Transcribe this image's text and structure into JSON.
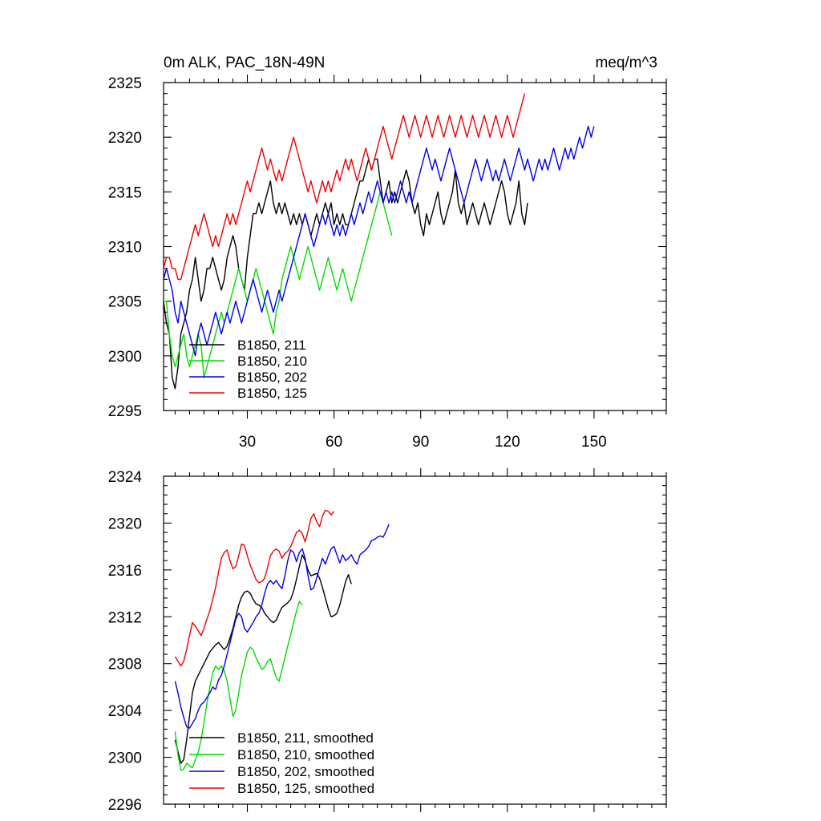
{
  "chart_data": [
    {
      "type": "line",
      "title_left": "0m ALK, PAC_18N-49N",
      "title_right": "meq/m^3",
      "xlabel": "",
      "ylabel": "",
      "xlim": [
        1,
        175
      ],
      "ylim": [
        2295,
        2325
      ],
      "xticks": [
        30,
        60,
        90,
        120,
        150
      ],
      "yticks": [
        2295,
        2300,
        2305,
        2310,
        2315,
        2320,
        2325
      ],
      "legend_position": "bottom-left",
      "series": [
        {
          "name": "B1850, 211",
          "color": "#000000",
          "x0": 1,
          "values": [
            2305,
            2303,
            2302,
            2298,
            2297,
            2299,
            2302,
            2303,
            2304,
            2306,
            2307,
            2309,
            2307,
            2305,
            2306,
            2308,
            2308,
            2309,
            2308,
            2307,
            2306,
            2307,
            2309,
            2310,
            2311,
            2310,
            2308,
            2307,
            2306,
            2309,
            2311,
            2313,
            2313,
            2314,
            2313,
            2314,
            2315,
            2316,
            2314,
            2313,
            2314,
            2313,
            2314,
            2313,
            2312,
            2313,
            2312,
            2313,
            2312,
            2313,
            2312,
            2311,
            2312,
            2313,
            2312,
            2313,
            2314,
            2313,
            2314,
            2312,
            2313,
            2312,
            2313,
            2312,
            2312,
            2313,
            2314,
            2315,
            2316,
            2316,
            2317,
            2318,
            2317,
            2318,
            2318,
            2316,
            2314,
            2315,
            2316,
            2314,
            2315,
            2314,
            2315,
            2316,
            2317,
            2316,
            2314,
            2313,
            2314,
            2312,
            2311,
            2313,
            2312,
            2313,
            2314,
            2315,
            2313,
            2312,
            2313,
            2314,
            2315,
            2317,
            2314,
            2313,
            2314,
            2312,
            2313,
            2314,
            2313,
            2312,
            2313,
            2314,
            2313,
            2312,
            2313,
            2314,
            2315,
            2316,
            2315,
            2313,
            2312,
            2313,
            2314,
            2316,
            2313,
            2312,
            2314
          ]
        },
        {
          "name": "B1850, 210",
          "color": "#00dd00",
          "x0": 1,
          "values": [
            2305,
            2305,
            2302,
            2300,
            2299,
            2300,
            2301,
            2302,
            2300,
            2299,
            2300,
            2301,
            2302,
            2301,
            2298,
            2299,
            2300,
            2301,
            2302,
            2303,
            2304,
            2303,
            2304,
            2305,
            2306,
            2307,
            2308,
            2307,
            2306,
            2305,
            2306,
            2307,
            2308,
            2307,
            2306,
            2305,
            2304,
            2303,
            2302,
            2304,
            2305,
            2307,
            2308,
            2309,
            2310,
            2309,
            2308,
            2307,
            2308,
            2309,
            2310,
            2309,
            2308,
            2307,
            2306,
            2307,
            2308,
            2309,
            2308,
            2307,
            2306,
            2307,
            2308,
            2307,
            2306,
            2305,
            2306,
            2307,
            2308,
            2309,
            2310,
            2311,
            2312,
            2313,
            2314,
            2315,
            2314,
            2313,
            2312,
            2311
          ]
        },
        {
          "name": "B1850, 202",
          "color": "#0000ee",
          "x0": 1,
          "values": [
            2307,
            2308,
            2307,
            2306,
            2304,
            2303,
            2305,
            2304,
            2303,
            2302,
            2301,
            2300,
            2302,
            2303,
            2302,
            2301,
            2302,
            2303,
            2304,
            2303,
            2302,
            2303,
            2304,
            2303,
            2304,
            2305,
            2304,
            2303,
            2304,
            2305,
            2306,
            2307,
            2306,
            2305,
            2304,
            2305,
            2306,
            2305,
            2304,
            2305,
            2306,
            2305,
            2306,
            2307,
            2308,
            2309,
            2310,
            2311,
            2312,
            2313,
            2312,
            2311,
            2310,
            2311,
            2312,
            2313,
            2312,
            2313,
            2312,
            2311,
            2312,
            2311,
            2312,
            2311,
            2312,
            2313,
            2312,
            2313,
            2314,
            2313,
            2314,
            2315,
            2314,
            2315,
            2316,
            2315,
            2314,
            2315,
            2314,
            2315,
            2314,
            2315,
            2316,
            2315,
            2314,
            2315,
            2314,
            2315,
            2316,
            2317,
            2318,
            2319,
            2318,
            2317,
            2318,
            2317,
            2316,
            2317,
            2318,
            2319,
            2318,
            2317,
            2316,
            2315,
            2314,
            2315,
            2316,
            2317,
            2318,
            2317,
            2316,
            2317,
            2318,
            2317,
            2316,
            2317,
            2316,
            2317,
            2318,
            2317,
            2316,
            2317,
            2318,
            2319,
            2318,
            2317,
            2318,
            2317,
            2316,
            2317,
            2318,
            2317,
            2318,
            2317,
            2318,
            2319,
            2318,
            2317,
            2318,
            2319,
            2318,
            2319,
            2318,
            2319,
            2320,
            2319,
            2320,
            2321,
            2320,
            2321
          ]
        },
        {
          "name": "B1850, 125",
          "color": "#ee0000",
          "x0": 1,
          "values": [
            2308,
            2309,
            2309,
            2308,
            2308,
            2307,
            2307,
            2308,
            2309,
            2310,
            2311,
            2312,
            2311,
            2312,
            2313,
            2312,
            2311,
            2310,
            2311,
            2310,
            2311,
            2312,
            2313,
            2312,
            2313,
            2312,
            2313,
            2314,
            2315,
            2316,
            2315,
            2316,
            2317,
            2318,
            2319,
            2318,
            2317,
            2318,
            2317,
            2316,
            2317,
            2316,
            2317,
            2318,
            2319,
            2320,
            2319,
            2318,
            2317,
            2316,
            2315,
            2316,
            2315,
            2314,
            2315,
            2316,
            2315,
            2316,
            2315,
            2316,
            2317,
            2316,
            2317,
            2318,
            2317,
            2318,
            2317,
            2316,
            2317,
            2318,
            2319,
            2318,
            2317,
            2318,
            2319,
            2320,
            2321,
            2320,
            2319,
            2318,
            2319,
            2320,
            2321,
            2322,
            2321,
            2320,
            2321,
            2322,
            2321,
            2320,
            2321,
            2322,
            2321,
            2320,
            2321,
            2322,
            2321,
            2320,
            2321,
            2322,
            2321,
            2320,
            2321,
            2322,
            2321,
            2320,
            2321,
            2322,
            2321,
            2320,
            2321,
            2322,
            2321,
            2320,
            2321,
            2322,
            2321,
            2320,
            2321,
            2322,
            2321,
            2320,
            2321,
            2322,
            2323,
            2324
          ]
        }
      ]
    },
    {
      "type": "line",
      "xlabel": "",
      "ylabel": "",
      "xlim": [
        1,
        175
      ],
      "ylim": [
        2296,
        2324
      ],
      "xticks": [
        30,
        60,
        90,
        120,
        150
      ],
      "show_xtick_labels": false,
      "yticks": [
        2296,
        2300,
        2304,
        2308,
        2312,
        2316,
        2320,
        2324
      ],
      "legend_position": "bottom-left",
      "series": [
        {
          "name": "B1850, 211, smoothed",
          "color": "#000000",
          "x0": 5,
          "values": [
            2301.5,
            2300.5,
            2299.5,
            2299.8,
            2301.5,
            2303.5,
            2305.5,
            2306.5,
            2307.0,
            2307.5,
            2308.0,
            2308.5,
            2309.0,
            2309.3,
            2309.6,
            2309.8,
            2309.5,
            2309.2,
            2309.5,
            2310.2,
            2311.0,
            2312.0,
            2313.0,
            2313.7,
            2314.1,
            2314.2,
            2314.0,
            2313.5,
            2313.1,
            2313.0,
            2312.8,
            2312.3,
            2312.0,
            2311.7,
            2311.5,
            2311.7,
            2312.3,
            2312.8,
            2313.0,
            2313.2,
            2313.5,
            2314.2,
            2315.2,
            2316.3,
            2317.3,
            2316.8,
            2316.0,
            2315.5,
            2315.6,
            2315.7,
            2315.3,
            2314.5,
            2313.6,
            2312.7,
            2312.0,
            2312.1,
            2312.3,
            2313.0,
            2314.0,
            2315.0,
            2315.6,
            2314.8
          ]
        },
        {
          "name": "B1850, 210, smoothed",
          "color": "#00dd00",
          "x0": 5,
          "values": [
            2302.2,
            2300.2,
            2298.9,
            2299.0,
            2299.5,
            2299.3,
            2299.1,
            2299.8,
            2300.4,
            2301.5,
            2303.0,
            2304.6,
            2306.0,
            2307.2,
            2307.8,
            2307.5,
            2307.8,
            2307.4,
            2306.5,
            2305.0,
            2303.5,
            2304.0,
            2305.5,
            2307.0,
            2308.0,
            2309.0,
            2309.4,
            2309.2,
            2308.5,
            2308.0,
            2307.5,
            2307.7,
            2308.2,
            2308.4,
            2307.6,
            2306.8,
            2306.5,
            2307.5,
            2308.5,
            2309.5,
            2310.5,
            2311.5,
            2312.5,
            2313.3,
            2313.0
          ]
        },
        {
          "name": "B1850, 202, smoothed",
          "color": "#0000ee",
          "x0": 5,
          "values": [
            2306.5,
            2305.5,
            2304.3,
            2303.4,
            2302.6,
            2302.5,
            2302.9,
            2303.3,
            2304.0,
            2304.5,
            2304.7,
            2305.1,
            2305.5,
            2306.0,
            2305.8,
            2306.6,
            2307.0,
            2307.8,
            2308.8,
            2309.8,
            2310.8,
            2311.8,
            2312.3,
            2312.0,
            2311.0,
            2310.7,
            2311.1,
            2311.5,
            2312.0,
            2312.3,
            2313.0,
            2314.0,
            2314.8,
            2315.1,
            2314.8,
            2315.1,
            2314.7,
            2314.4,
            2315.5,
            2316.8,
            2317.7,
            2317.5,
            2316.7,
            2317.5,
            2317.8,
            2317.0,
            2315.5,
            2314.3,
            2314.5,
            2315.3,
            2316.2,
            2317.0,
            2316.5,
            2317.2,
            2317.8,
            2318.0,
            2317.3,
            2316.6,
            2317.3,
            2316.8,
            2317.0,
            2317.3,
            2316.8,
            2316.5,
            2317.3,
            2317.5,
            2317.7,
            2318.0,
            2318.5,
            2318.6,
            2318.8,
            2318.9,
            2318.8,
            2319.3,
            2319.9
          ]
        },
        {
          "name": "B1850, 125, smoothed",
          "color": "#ee0000",
          "x0": 5,
          "values": [
            2308.6,
            2308.2,
            2307.8,
            2308.2,
            2309.2,
            2310.4,
            2311.5,
            2311.2,
            2310.8,
            2310.4,
            2311.0,
            2311.8,
            2312.5,
            2313.5,
            2314.5,
            2315.8,
            2317.0,
            2317.5,
            2317.7,
            2316.8,
            2316.1,
            2316.3,
            2317.2,
            2318.2,
            2318.1,
            2317.2,
            2316.4,
            2315.8,
            2315.2,
            2314.9,
            2315.0,
            2315.3,
            2316.2,
            2317.2,
            2317.6,
            2317.8,
            2317.6,
            2317.0,
            2317.4,
            2317.6,
            2318.0,
            2318.6,
            2319.2,
            2319.4,
            2319.1,
            2318.4,
            2319.3,
            2320.4,
            2320.8,
            2320.1,
            2319.7,
            2320.6,
            2321.1,
            2321.0,
            2320.7,
            2321.0
          ]
        }
      ]
    }
  ]
}
